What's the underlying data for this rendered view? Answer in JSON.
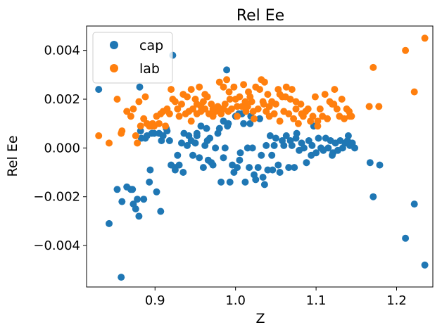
{
  "chart_data": {
    "type": "scatter",
    "title": "Rel Ee",
    "xlabel": "Z",
    "ylabel": "Rel Ee",
    "xlim": [
      0.815,
      1.245
    ],
    "ylim": [
      -0.0057,
      0.005
    ],
    "xticks": [
      0.9,
      1.0,
      1.1,
      1.2
    ],
    "xtick_labels": [
      "0.9",
      "1.0",
      "1.1",
      "1.2"
    ],
    "yticks": [
      -0.004,
      -0.002,
      0.0,
      0.002,
      0.004
    ],
    "ytick_labels": [
      "−0.004",
      "−0.002",
      "0.000",
      "0.002",
      "0.004"
    ],
    "grid": false,
    "legend_position": "upper-left",
    "series": [
      {
        "name": "cap",
        "color": "#1f77b4",
        "x": [
          0.83,
          0.843,
          0.853,
          0.858,
          0.859,
          0.865,
          0.87,
          0.872,
          0.873,
          0.876,
          0.878,
          0.88,
          0.881,
          0.883,
          0.886,
          0.888,
          0.89,
          0.893,
          0.894,
          0.896,
          0.899,
          0.902,
          0.905,
          0.907,
          0.908,
          0.91,
          0.914,
          0.918,
          0.92,
          0.922,
          0.925,
          0.928,
          0.93,
          0.933,
          0.935,
          0.936,
          0.94,
          0.942,
          0.945,
          0.947,
          0.95,
          0.952,
          0.955,
          0.957,
          0.96,
          0.962,
          0.964,
          0.966,
          0.968,
          0.97,
          0.972,
          0.975,
          0.978,
          0.98,
          0.982,
          0.985,
          0.987,
          0.989,
          0.991,
          0.993,
          0.996,
          0.998,
          1.0,
          1.002,
          1.004,
          1.006,
          1.008,
          1.01,
          1.012,
          1.015,
          1.017,
          1.019,
          1.021,
          1.023,
          1.025,
          1.028,
          1.03,
          1.032,
          1.034,
          1.036,
          1.038,
          1.04,
          1.043,
          1.046,
          1.048,
          1.05,
          1.053,
          1.055,
          1.058,
          1.06,
          1.063,
          1.066,
          1.068,
          1.07,
          1.073,
          1.076,
          1.079,
          1.082,
          1.085,
          1.088,
          1.091,
          1.094,
          1.097,
          1.1,
          1.103,
          1.106,
          1.109,
          1.112,
          1.115,
          1.118,
          1.121,
          1.124,
          1.127,
          1.13,
          1.133,
          1.136,
          1.139,
          1.142,
          1.145,
          1.148,
          1.167,
          1.171,
          1.179,
          1.211,
          1.222,
          1.235,
          0.99,
          1.018,
          0.925,
          0.882,
          0.897,
          0.915,
          0.952,
          0.965,
          0.985,
          1.005,
          1.045,
          1.075,
          1.095,
          1.12,
          1.14
        ],
        "y": [
          0.0024,
          -0.0031,
          -0.0017,
          -0.0053,
          -0.0022,
          -0.0016,
          -0.0017,
          -0.0017,
          -0.0023,
          -0.0025,
          -0.0021,
          -0.0028,
          0.0025,
          0.0004,
          -0.0021,
          0.0004,
          0.0005,
          -0.0014,
          -0.0009,
          0.0006,
          0.0006,
          -0.0018,
          0.0006,
          -0.0026,
          0.0003,
          0.0005,
          0.0008,
          0.0003,
          -0.0007,
          0.0038,
          -0.0008,
          -0.0003,
          -0.0007,
          0.0002,
          -0.001,
          0.0006,
          0.0001,
          0.0005,
          0.0003,
          -0.0003,
          0.0002,
          0.0005,
          -0.0004,
          0.0009,
          -0.0008,
          0.0001,
          0.0008,
          -0.0005,
          0.0004,
          -0.0006,
          -0.0007,
          0.0,
          0.0006,
          0.0008,
          -0.0014,
          0.0011,
          0.0,
          0.0032,
          0.001,
          -0.0014,
          -0.0007,
          -0.001,
          0.0013,
          -0.0008,
          0.0014,
          -0.0002,
          0.0014,
          0.001,
          -0.0014,
          0.0,
          -0.0008,
          0.0013,
          0.0,
          -0.0011,
          -0.0013,
          -0.0008,
          0.0012,
          -0.0003,
          -0.0012,
          -0.0015,
          0.0001,
          -0.0009,
          0.0005,
          -0.0009,
          0.0001,
          0.0004,
          -0.0007,
          -0.001,
          0.0003,
          0.0001,
          0.0005,
          -0.0008,
          0.0003,
          0.0001,
          -0.0008,
          0.0006,
          -0.0001,
          0.0002,
          0.0,
          -0.0006,
          0.0003,
          -0.0003,
          0.0009,
          -0.0002,
          0.0004,
          0.0,
          -0.0001,
          0.0004,
          0.0,
          0.0003,
          -0.0002,
          0.0002,
          -0.0001,
          0.0003,
          0.0,
          0.0002,
          0.0003,
          0.0001,
          0.0002,
          0.0,
          -0.0006,
          -0.002,
          -0.0007,
          -0.0037,
          -0.0023,
          -0.0048,
          0.0009,
          0.001,
          -0.0009,
          0.0007,
          0.0009,
          0.0007,
          0.0006,
          0.0003,
          -0.0004,
          -0.0005,
          -0.0003,
          0.0004,
          0.0001,
          -0.0003,
          0.0005
        ]
      },
      {
        "name": "lab",
        "color": "#ff7f0e",
        "x": [
          0.83,
          0.843,
          0.853,
          0.858,
          0.859,
          0.865,
          0.87,
          0.873,
          0.876,
          0.878,
          0.88,
          0.882,
          0.886,
          0.888,
          0.89,
          0.893,
          0.895,
          0.897,
          0.899,
          0.902,
          0.905,
          0.907,
          0.91,
          0.913,
          0.915,
          0.918,
          0.92,
          0.922,
          0.925,
          0.928,
          0.93,
          0.933,
          0.935,
          0.938,
          0.94,
          0.942,
          0.945,
          0.947,
          0.95,
          0.952,
          0.955,
          0.957,
          0.96,
          0.962,
          0.965,
          0.967,
          0.97,
          0.972,
          0.975,
          0.978,
          0.98,
          0.982,
          0.985,
          0.987,
          0.989,
          0.991,
          0.993,
          0.995,
          0.998,
          1.0,
          1.002,
          1.005,
          1.008,
          1.01,
          1.013,
          1.016,
          1.018,
          1.02,
          1.023,
          1.025,
          1.028,
          1.03,
          1.032,
          1.034,
          1.036,
          1.038,
          1.04,
          1.042,
          1.045,
          1.048,
          1.05,
          1.053,
          1.055,
          1.058,
          1.06,
          1.063,
          1.066,
          1.068,
          1.07,
          1.072,
          1.075,
          1.078,
          1.081,
          1.084,
          1.087,
          1.09,
          1.093,
          1.096,
          1.099,
          1.102,
          1.105,
          1.108,
          1.111,
          1.114,
          1.117,
          1.12,
          1.123,
          1.126,
          1.129,
          1.132,
          1.135,
          1.138,
          1.141,
          1.144,
          1.166,
          1.171,
          1.178,
          1.211,
          1.222,
          1.235,
          0.952,
          0.962,
          0.972,
          0.982,
          0.992,
          1.002,
          1.012,
          1.022,
          1.042,
          1.062,
          1.082,
          1.102,
          1.122,
          1.142,
          0.945,
          0.957,
          0.985,
          1.015,
          1.035,
          1.055,
          1.075
        ],
        "y": [
          0.0005,
          0.0002,
          0.002,
          0.0006,
          0.0007,
          0.0015,
          0.0013,
          0.0016,
          0.0005,
          0.0002,
          0.0019,
          0.0009,
          0.0012,
          0.0021,
          0.001,
          0.0009,
          0.0009,
          0.001,
          0.0009,
          0.0013,
          0.001,
          0.0014,
          0.0015,
          0.0009,
          0.0016,
          0.0014,
          0.0024,
          0.002,
          0.0019,
          0.0016,
          0.0013,
          0.0018,
          0.0022,
          0.0014,
          0.0021,
          0.0015,
          0.0024,
          0.0016,
          0.002,
          0.0014,
          0.0025,
          0.0017,
          0.0019,
          0.0016,
          0.0021,
          0.0014,
          0.0018,
          0.0016,
          0.0015,
          0.0017,
          0.0027,
          0.0014,
          0.0025,
          0.0018,
          0.0028,
          0.0015,
          0.002,
          0.0016,
          0.0025,
          0.002,
          0.0013,
          0.0021,
          0.0017,
          0.0026,
          0.0015,
          0.0023,
          0.0021,
          0.0019,
          0.0012,
          0.0025,
          0.0016,
          0.0024,
          0.0028,
          0.0019,
          0.0027,
          0.0015,
          0.0022,
          0.0013,
          0.0019,
          0.0014,
          0.0018,
          0.0024,
          0.0011,
          0.0021,
          0.0015,
          0.0025,
          0.0014,
          0.002,
          0.0024,
          0.0012,
          0.0016,
          0.001,
          0.0018,
          0.0013,
          0.0015,
          0.0016,
          0.0011,
          0.0013,
          0.0021,
          0.0009,
          0.0016,
          0.0013,
          0.0022,
          0.0012,
          0.0019,
          0.0018,
          0.0024,
          0.0016,
          0.0013,
          0.002,
          0.0012,
          0.0016,
          0.0015,
          0.0013,
          0.0017,
          0.0033,
          0.0017,
          0.004,
          0.0023,
          0.0045,
          0.0018,
          0.0022,
          0.0013,
          0.0016,
          0.0023,
          0.0017,
          0.0019,
          0.0015,
          0.0017,
          0.0021,
          0.0014,
          0.0011,
          0.0018,
          0.0013,
          0.0011,
          0.0015,
          0.0016,
          0.0017,
          0.0018,
          0.0022,
          0.0019
        ]
      }
    ]
  }
}
